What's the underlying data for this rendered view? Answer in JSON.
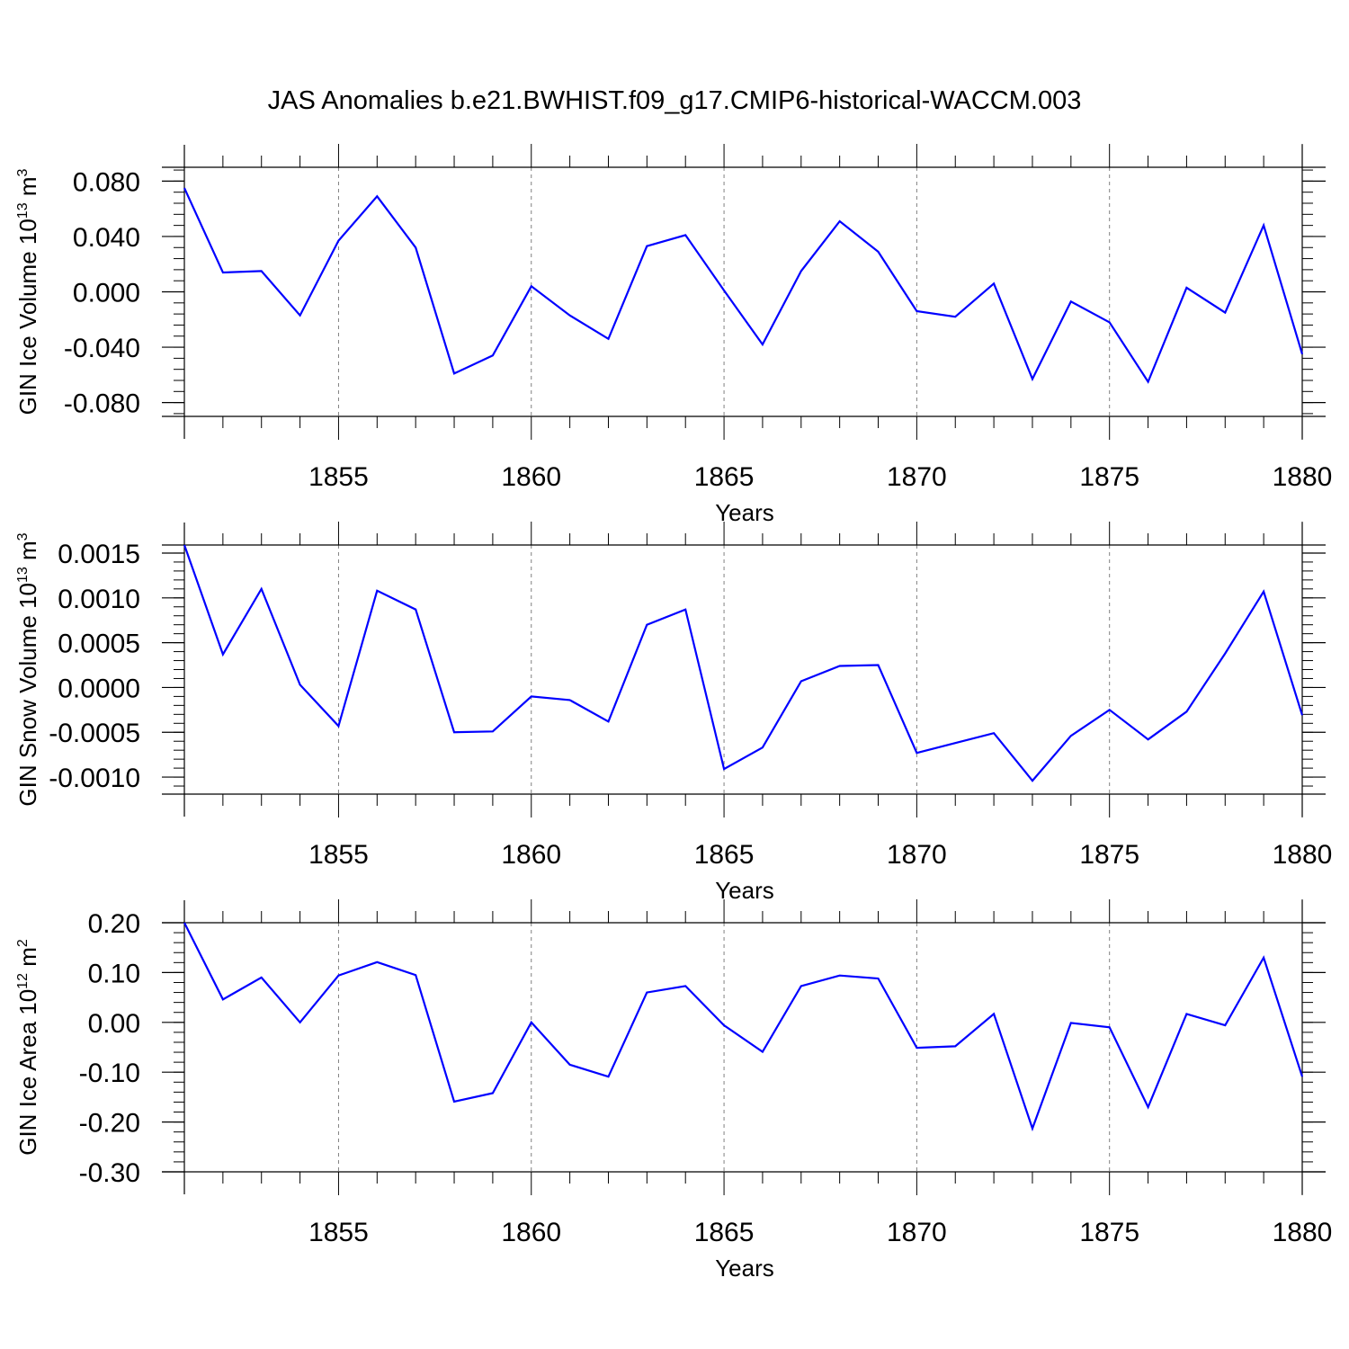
{
  "title": "JAS Anomalies b.e21.BWHIST.f09_g17.CMIP6-historical-WACCM.003",
  "colors": {
    "series": "#0000ff",
    "axis": "#000000",
    "grid": "#808080"
  },
  "chart_data": [
    {
      "type": "line",
      "title": "JAS Anomalies b.e21.BWHIST.f09_g17.CMIP6-historical-WACCM.003",
      "xlabel": "Years",
      "ylabel": "GIN Ice Volume 10",
      "ylabel_exp": "13",
      "ylabel_unit": " m",
      "ylabel_unit_exp": "3",
      "xlim": [
        1851,
        1880
      ],
      "ylim": [
        -0.09,
        0.09
      ],
      "x_ticks": [
        "1855",
        "1860",
        "1865",
        "1870",
        "1875",
        "1880"
      ],
      "y_ticks": [
        "0.080",
        "0.040",
        "0.000",
        "-0.040",
        "-0.080"
      ],
      "grid": "vertical-dashed",
      "x": [
        1851,
        1852,
        1853,
        1854,
        1855,
        1856,
        1857,
        1858,
        1859,
        1860,
        1861,
        1862,
        1863,
        1864,
        1865,
        1866,
        1867,
        1868,
        1869,
        1870,
        1871,
        1872,
        1873,
        1874,
        1875,
        1876,
        1877,
        1878,
        1879,
        1880
      ],
      "values": [
        0.075,
        0.014,
        0.015,
        -0.017,
        0.037,
        0.069,
        0.032,
        -0.059,
        -0.046,
        0.004,
        -0.017,
        -0.034,
        0.033,
        0.041,
        0.001,
        -0.038,
        0.015,
        0.051,
        0.029,
        -0.014,
        -0.018,
        0.006,
        -0.063,
        -0.007,
        -0.022,
        -0.065,
        0.003,
        -0.015,
        0.048,
        -0.045
      ]
    },
    {
      "type": "line",
      "xlabel": "Years",
      "ylabel": "GIN Snow Volume 10",
      "ylabel_exp": "13",
      "ylabel_unit": " m",
      "ylabel_unit_exp": "3",
      "xlim": [
        1851,
        1880
      ],
      "ylim": [
        -0.00119,
        0.00159
      ],
      "x_ticks": [
        "1855",
        "1860",
        "1865",
        "1870",
        "1875",
        "1880"
      ],
      "y_ticks": [
        "0.0015",
        "0.0010",
        "0.0005",
        "0.0000",
        "-0.0005",
        "-0.0010"
      ],
      "grid": "vertical-dashed",
      "x": [
        1851,
        1852,
        1853,
        1854,
        1855,
        1856,
        1857,
        1858,
        1859,
        1860,
        1861,
        1862,
        1863,
        1864,
        1865,
        1866,
        1867,
        1868,
        1869,
        1870,
        1871,
        1872,
        1873,
        1874,
        1875,
        1876,
        1877,
        1878,
        1879,
        1880
      ],
      "values": [
        0.00159,
        0.00037,
        0.0011,
        3e-05,
        -0.00043,
        0.00108,
        0.00087,
        -0.0005,
        -0.00049,
        -0.0001,
        -0.00014,
        -0.00038,
        0.0007,
        0.00087,
        -0.00091,
        -0.00067,
        7e-05,
        0.00024,
        0.00025,
        -0.00073,
        -0.00062,
        -0.00051,
        -0.00104,
        -0.00054,
        -0.00025,
        -0.00058,
        -0.00027,
        0.00038,
        0.00107,
        -0.00031
      ]
    },
    {
      "type": "line",
      "xlabel": "Years",
      "ylabel": "GIN Ice Area 10",
      "ylabel_exp": "12",
      "ylabel_unit": " m",
      "ylabel_unit_exp": "2",
      "xlim": [
        1851,
        1880
      ],
      "ylim": [
        -0.3,
        0.2
      ],
      "x_ticks": [
        "1855",
        "1860",
        "1865",
        "1870",
        "1875",
        "1880"
      ],
      "y_ticks": [
        "0.20",
        "0.10",
        "0.00",
        "-0.10",
        "-0.20",
        "-0.30"
      ],
      "grid": "vertical-dashed",
      "x": [
        1851,
        1852,
        1853,
        1854,
        1855,
        1856,
        1857,
        1858,
        1859,
        1860,
        1861,
        1862,
        1863,
        1864,
        1865,
        1866,
        1867,
        1868,
        1869,
        1870,
        1871,
        1872,
        1873,
        1874,
        1875,
        1876,
        1877,
        1878,
        1879,
        1880
      ],
      "values": [
        0.2,
        0.046,
        0.09,
        0.0,
        0.094,
        0.121,
        0.095,
        -0.159,
        -0.142,
        0.0,
        -0.085,
        -0.109,
        0.06,
        0.073,
        -0.006,
        -0.059,
        0.073,
        0.094,
        0.088,
        -0.051,
        -0.048,
        0.017,
        -0.213,
        -0.001,
        -0.01,
        -0.17,
        0.017,
        -0.006,
        0.13,
        -0.109
      ]
    }
  ]
}
